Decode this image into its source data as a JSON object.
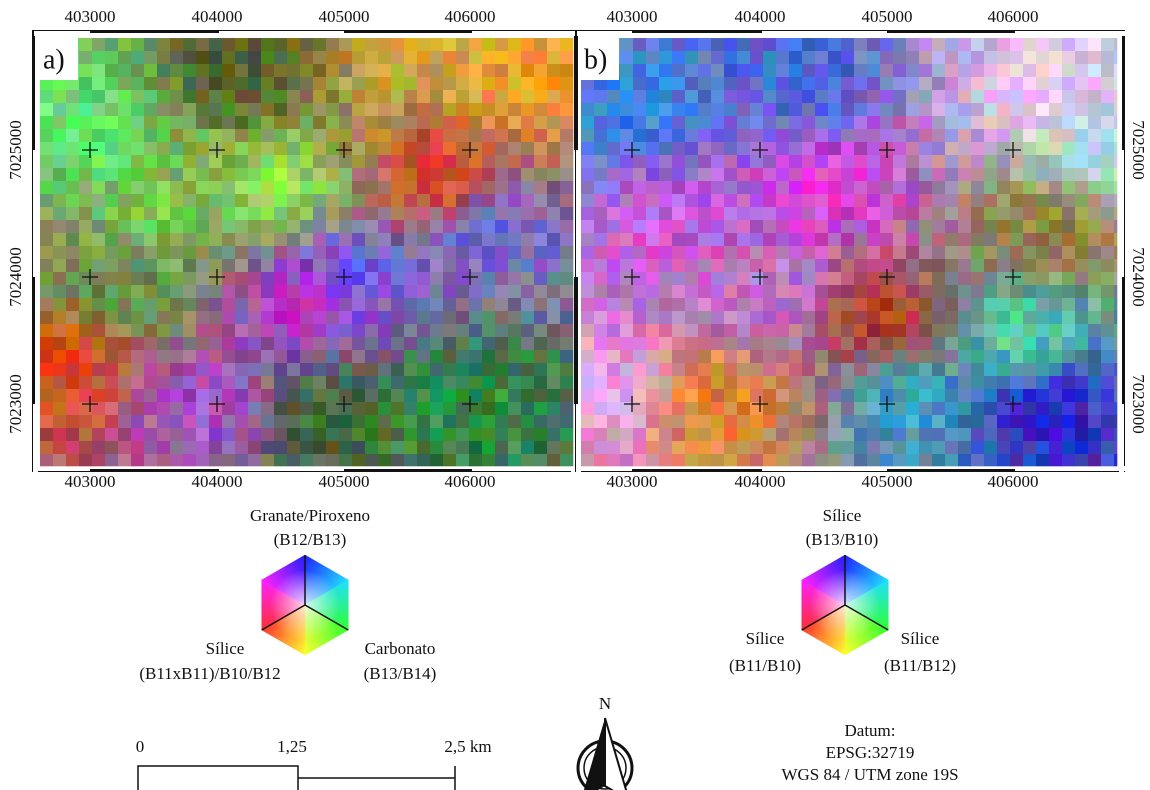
{
  "panels": [
    {
      "label": "a)",
      "x_labels": [
        "403000",
        "404000",
        "405000",
        "406000"
      ],
      "y_labels": [
        "7025000",
        "7024000",
        "7023000"
      ],
      "legend": {
        "top": "Granate/Piroxeno",
        "top_sub": "(B12/B13)",
        "left": "Sílice",
        "left_sub": "(B11xB11)/B10/B12",
        "right": "Carbonato",
        "right_sub": "(B13/B14)"
      }
    },
    {
      "label": "b)",
      "x_labels": [
        "403000",
        "404000",
        "405000",
        "406000"
      ],
      "y_labels": [
        "7025000",
        "7024000",
        "7023000"
      ],
      "legend": {
        "top": "Sílice",
        "top_sub": "(B13/B10)",
        "left": "Sílice",
        "left_sub": "(B11/B10)",
        "right": "Sílice",
        "right_sub": "(B11/B12)"
      }
    }
  ],
  "scale_bar": {
    "labels": [
      "0",
      "1,25",
      "2,5 km"
    ]
  },
  "north_arrow": {
    "label": "N"
  },
  "datum": {
    "title": "Datum:",
    "code": "EPSG:32719",
    "projection": "WGS 84 / UTM zone 19S"
  }
}
